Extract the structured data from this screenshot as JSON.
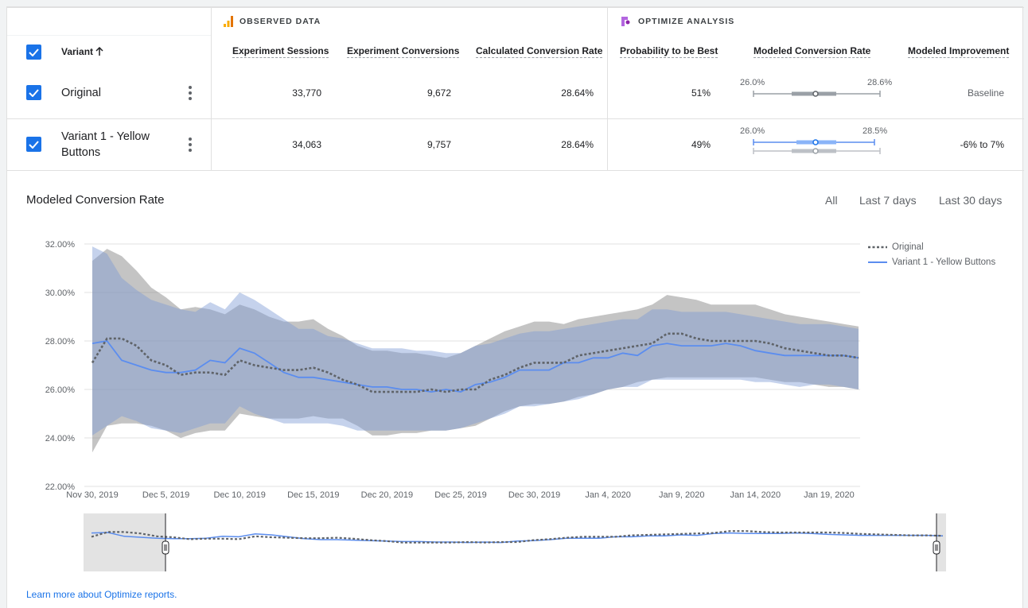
{
  "sections": {
    "observed": "OBSERVED DATA",
    "optimize": "OPTIMIZE ANALYSIS"
  },
  "columns": {
    "variant": "Variant",
    "sessions": "Experiment Sessions",
    "conversions": "Experiment Conversions",
    "calc_rate": "Calculated Conversion Rate",
    "prob_best": "Probability to be Best",
    "modeled_rate": "Modeled Conversion Rate",
    "modeled_improvement": "Modeled Improvement"
  },
  "rows": [
    {
      "name": "Original",
      "sessions": "33,770",
      "conversions": "9,672",
      "calc_rate": "28.64%",
      "prob_best": "51%",
      "range_low": "26.0%",
      "range_high": "28.6%",
      "improvement": "Baseline"
    },
    {
      "name": "Variant 1 - Yellow Buttons",
      "sessions": "34,063",
      "conversions": "9,757",
      "calc_rate": "28.64%",
      "prob_best": "49%",
      "range_low": "26.0%",
      "range_high": "28.5%",
      "improvement": "-6% to 7%"
    }
  ],
  "chart": {
    "title": "Modeled Conversion Rate",
    "ranges": [
      "All",
      "Last 7 days",
      "Last 30 days"
    ]
  },
  "learn_more": "Learn more about Optimize reports.",
  "colors": {
    "accent": "#1a73e8",
    "original_band": "#9e9e9e",
    "variant_band": "#8fa9d8",
    "variant_line": "#5b8def",
    "original_line": "#5f6368"
  },
  "chart_data": {
    "type": "line",
    "title": "Modeled Conversion Rate",
    "xlabel": "",
    "ylabel": "",
    "ylim": [
      22,
      32
    ],
    "yticks": [
      "32.00%",
      "30.00%",
      "28.00%",
      "26.00%",
      "24.00%",
      "22.00%"
    ],
    "yticks_values": [
      32,
      30,
      28,
      26,
      24,
      22
    ],
    "xticks": [
      "Nov 30, 2019",
      "Dec 5, 2019",
      "Dec 10, 2019",
      "Dec 15, 2019",
      "Dec 20, 2019",
      "Dec 25, 2019",
      "Dec 30, 2019",
      "Jan 4, 2020",
      "Jan 9, 2020",
      "Jan 14, 2020",
      "Jan 19, 2020"
    ],
    "xticks_day": [
      0,
      5,
      10,
      15,
      20,
      25,
      30,
      35,
      40,
      45,
      50
    ],
    "x": [
      0,
      1,
      2,
      3,
      4,
      5,
      6,
      7,
      8,
      9,
      10,
      11,
      12,
      13,
      14,
      15,
      16,
      17,
      18,
      19,
      20,
      21,
      22,
      23,
      24,
      25,
      26,
      27,
      28,
      29,
      30,
      31,
      32,
      33,
      34,
      35,
      36,
      37,
      38,
      39,
      40,
      41,
      42,
      43,
      44,
      45,
      46,
      47,
      48,
      49,
      50,
      51,
      52
    ],
    "legend": "top-right",
    "grid": true,
    "series": [
      {
        "name": "Original",
        "style": "dotted",
        "values": [
          27.1,
          28.1,
          28.1,
          27.8,
          27.2,
          27.0,
          26.6,
          26.7,
          26.7,
          26.6,
          27.2,
          27.0,
          26.9,
          26.8,
          26.8,
          26.9,
          26.7,
          26.4,
          26.2,
          25.9,
          25.9,
          25.9,
          25.9,
          26.0,
          25.9,
          26.0,
          26.0,
          26.4,
          26.6,
          26.9,
          27.1,
          27.1,
          27.1,
          27.4,
          27.5,
          27.6,
          27.7,
          27.8,
          27.9,
          28.3,
          28.3,
          28.1,
          28.0,
          28.0,
          28.0,
          28.0,
          27.9,
          27.7,
          27.6,
          27.5,
          27.4,
          27.4,
          27.3
        ],
        "lower": [
          23.4,
          24.5,
          24.6,
          24.6,
          24.5,
          24.3,
          24.0,
          24.2,
          24.3,
          24.3,
          25.0,
          24.9,
          24.8,
          24.8,
          24.8,
          24.9,
          24.8,
          24.8,
          24.5,
          24.1,
          24.1,
          24.2,
          24.2,
          24.3,
          24.3,
          24.4,
          24.5,
          24.8,
          25.1,
          25.3,
          25.4,
          25.4,
          25.5,
          25.7,
          25.8,
          26.0,
          26.1,
          26.3,
          26.4,
          26.5,
          26.5,
          26.5,
          26.5,
          26.5,
          26.5,
          26.5,
          26.4,
          26.3,
          26.3,
          26.2,
          26.1,
          26.1,
          26.0
        ],
        "upper": [
          31.3,
          31.8,
          31.5,
          30.9,
          30.2,
          29.8,
          29.3,
          29.4,
          29.3,
          29.1,
          29.5,
          29.3,
          29.0,
          28.8,
          28.8,
          28.9,
          28.5,
          28.2,
          27.8,
          27.6,
          27.6,
          27.5,
          27.5,
          27.4,
          27.3,
          27.5,
          27.8,
          28.1,
          28.4,
          28.6,
          28.8,
          28.8,
          28.7,
          28.9,
          29.0,
          29.1,
          29.2,
          29.3,
          29.5,
          29.9,
          29.8,
          29.7,
          29.5,
          29.5,
          29.5,
          29.5,
          29.3,
          29.1,
          29.0,
          28.9,
          28.8,
          28.7,
          28.6
        ]
      },
      {
        "name": "Variant 1 - Yellow Buttons",
        "style": "solid",
        "values": [
          27.9,
          28.0,
          27.2,
          27.0,
          26.8,
          26.7,
          26.7,
          26.8,
          27.2,
          27.1,
          27.7,
          27.5,
          27.1,
          26.7,
          26.5,
          26.5,
          26.4,
          26.3,
          26.2,
          26.1,
          26.1,
          26.0,
          26.0,
          25.9,
          26.0,
          25.9,
          26.2,
          26.3,
          26.5,
          26.8,
          26.8,
          26.8,
          27.1,
          27.1,
          27.3,
          27.3,
          27.5,
          27.4,
          27.8,
          27.9,
          27.8,
          27.8,
          27.8,
          27.9,
          27.8,
          27.6,
          27.5,
          27.4,
          27.4,
          27.4,
          27.4,
          27.4,
          27.3
        ],
        "lower": [
          24.1,
          24.5,
          24.9,
          24.7,
          24.4,
          24.3,
          24.2,
          24.4,
          24.6,
          24.6,
          25.3,
          25.0,
          24.8,
          24.6,
          24.6,
          24.6,
          24.6,
          24.5,
          24.3,
          24.3,
          24.3,
          24.3,
          24.3,
          24.3,
          24.3,
          24.4,
          24.6,
          24.8,
          25.0,
          25.3,
          25.3,
          25.4,
          25.5,
          25.6,
          25.8,
          26.0,
          26.1,
          26.1,
          26.4,
          26.4,
          26.4,
          26.4,
          26.4,
          26.4,
          26.4,
          26.3,
          26.3,
          26.2,
          26.1,
          26.2,
          26.2,
          26.1,
          26.0
        ],
        "upper": [
          31.9,
          31.6,
          30.6,
          30.1,
          29.7,
          29.5,
          29.3,
          29.2,
          29.6,
          29.3,
          30.0,
          29.7,
          29.3,
          28.9,
          28.5,
          28.5,
          28.2,
          28.1,
          27.9,
          27.7,
          27.7,
          27.7,
          27.6,
          27.6,
          27.5,
          27.5,
          27.8,
          27.9,
          28.1,
          28.3,
          28.4,
          28.4,
          28.5,
          28.6,
          28.7,
          28.8,
          28.9,
          28.9,
          29.3,
          29.3,
          29.2,
          29.2,
          29.2,
          29.2,
          29.1,
          29.0,
          28.9,
          28.8,
          28.7,
          28.7,
          28.7,
          28.6,
          28.5
        ]
      }
    ]
  }
}
